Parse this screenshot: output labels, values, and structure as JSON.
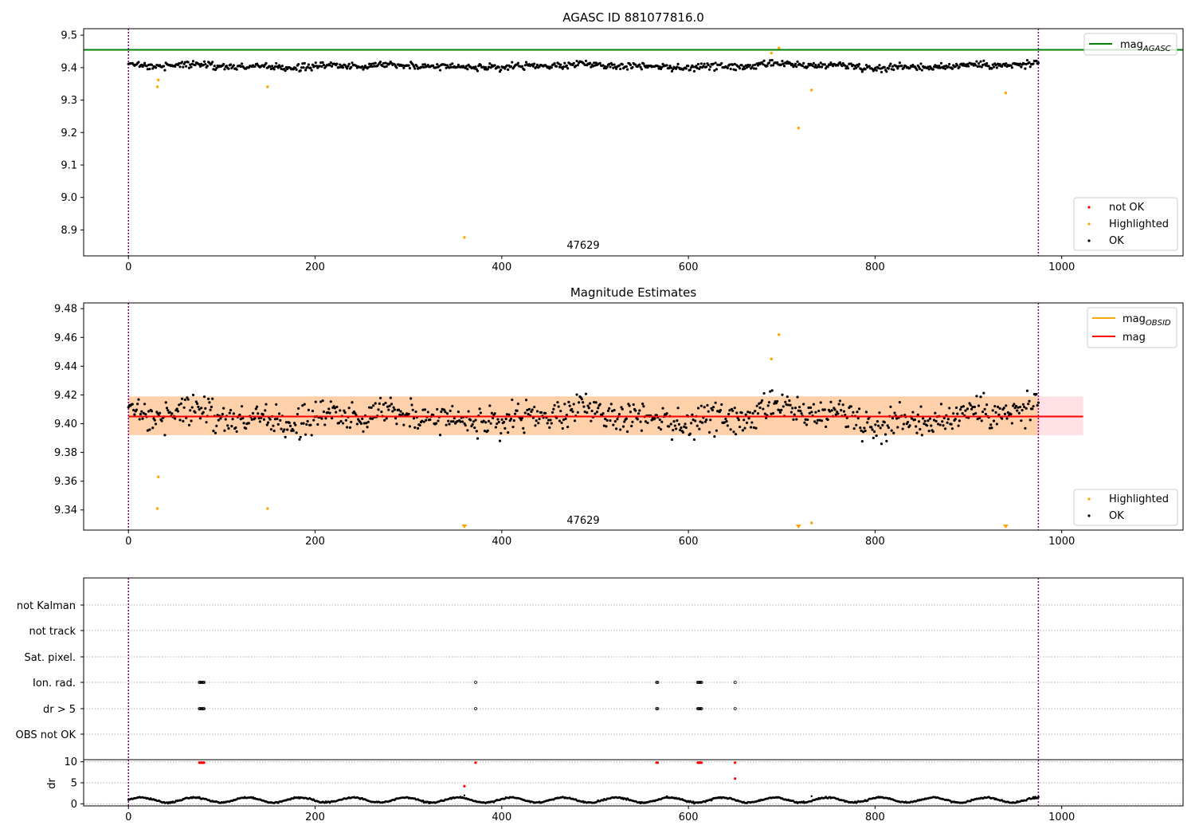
{
  "chart_data": [
    {
      "type": "scatter",
      "title": "AGASC ID 881077816.0",
      "xlim": [
        -48,
        1130
      ],
      "ylim": [
        8.82,
        9.52
      ],
      "xticks": [
        0,
        200,
        400,
        600,
        800,
        1000
      ],
      "yticks": [
        8.9,
        9.0,
        9.1,
        9.2,
        9.3,
        9.4,
        9.5
      ],
      "ytick_labels": [
        "8.9",
        "9.0",
        "9.1",
        "9.2",
        "9.3",
        "9.4",
        "9.5"
      ],
      "obsid_label": "47629",
      "obsid_label_x": 486,
      "obs_boundaries": [
        0,
        975
      ],
      "mag_agasc": 9.455,
      "series": [
        {
          "name": "not OK",
          "color": "#ff0000",
          "points": []
        },
        {
          "name": "Highlighted",
          "color": "#ffa500",
          "points": [
            [
              31,
              9.341
            ],
            [
              32,
              9.362
            ],
            [
              149,
              9.341
            ],
            [
              360,
              8.877
            ],
            [
              689,
              9.445
            ],
            [
              697,
              9.461
            ],
            [
              718,
              9.214
            ],
            [
              732,
              9.331
            ],
            [
              940,
              9.322
            ]
          ]
        },
        {
          "name": "OK",
          "color": "#000000",
          "generator": {
            "x_from": 0,
            "x_to": 975,
            "n": 900,
            "mean": 9.405,
            "std": 0.011
          }
        }
      ],
      "legend_top": {
        "label": "mag",
        "sub": "AGASC",
        "color": "#008000",
        "position": "upper right"
      },
      "legend_bottom": {
        "entries": [
          "not OK",
          "Highlighted",
          "OK"
        ],
        "position": "lower right"
      }
    },
    {
      "type": "scatter",
      "title": "Magnitude Estimates",
      "xlim": [
        -48,
        1130
      ],
      "ylim": [
        9.326,
        9.484
      ],
      "xticks": [
        0,
        200,
        400,
        600,
        800,
        1000
      ],
      "yticks": [
        9.34,
        9.36,
        9.38,
        9.4,
        9.42,
        9.44,
        9.46,
        9.48
      ],
      "ytick_labels": [
        "9.34",
        "9.36",
        "9.38",
        "9.40",
        "9.42",
        "9.44",
        "9.46",
        "9.48"
      ],
      "obsid_label": "47629",
      "obsid_label_x": 486,
      "obs_boundaries": [
        0,
        975
      ],
      "mag_obsid": {
        "mean": 9.405,
        "low": 9.392,
        "high": 9.419,
        "x_end": 975,
        "color": "#ffa500"
      },
      "mag": {
        "mean": 9.405,
        "low": 9.392,
        "high": 9.419,
        "x_end": 1023,
        "color": "#ff0000"
      },
      "series": [
        {
          "name": "Highlighted",
          "color": "#ffa500",
          "points": [
            [
              31,
              9.341
            ],
            [
              32,
              9.363
            ],
            [
              149,
              9.341
            ],
            [
              689,
              9.445
            ],
            [
              697,
              9.462
            ],
            [
              732,
              9.331
            ]
          ],
          "out_of_range_below_x": [
            360,
            718,
            940
          ]
        },
        {
          "name": "OK",
          "color": "#000000",
          "generator": {
            "x_from": 0,
            "x_to": 975,
            "n": 900,
            "mean": 9.405,
            "std": 0.011
          }
        }
      ],
      "legend_top": {
        "entries": [
          {
            "label": "mag",
            "sub": "OBSID",
            "color": "#ffa500"
          },
          {
            "label": "mag",
            "color": "#ff0000"
          }
        ],
        "position": "upper right"
      },
      "legend_bottom": {
        "entries": [
          "Highlighted",
          "OK"
        ],
        "position": "lower right"
      }
    },
    {
      "type": "scatter",
      "title": "",
      "xlim": [
        -48,
        1130
      ],
      "categories": [
        "not Kalman",
        "not track",
        "Sat. pixel.",
        "Ion. rad.",
        "dr > 5",
        "OBS not OK"
      ],
      "flag_points": {
        "Ion. rad.": [
          76,
          77,
          78,
          79,
          80,
          81,
          372,
          566,
          567,
          610,
          611,
          612,
          613,
          614,
          650
        ],
        "dr > 5": [
          76,
          77,
          78,
          79,
          80,
          81,
          372,
          566,
          567,
          610,
          611,
          612,
          613,
          614,
          650
        ]
      },
      "obs_boundaries": [
        0,
        975
      ]
    },
    {
      "type": "scatter",
      "ylabel": "dr",
      "xlim": [
        -48,
        1130
      ],
      "ylim": [
        -0.5,
        10.5
      ],
      "xticks": [
        0,
        200,
        400,
        600,
        800,
        1000
      ],
      "yticks": [
        0,
        5,
        10
      ],
      "ytick_labels": [
        "0",
        "5",
        "10"
      ],
      "obs_boundaries": [
        0,
        975
      ],
      "red_points": [
        [
          76,
          9.8
        ],
        [
          77,
          9.8
        ],
        [
          78,
          9.8
        ],
        [
          79,
          9.8
        ],
        [
          80,
          9.8
        ],
        [
          81,
          9.8
        ],
        [
          372,
          9.8
        ],
        [
          566,
          9.8
        ],
        [
          567,
          9.8
        ],
        [
          610,
          9.8
        ],
        [
          611,
          9.8
        ],
        [
          612,
          9.8
        ],
        [
          613,
          9.8
        ],
        [
          614,
          9.8
        ],
        [
          650,
          9.8
        ],
        [
          650,
          6.0
        ],
        [
          360,
          4.2
        ]
      ],
      "black_generator": {
        "x_from": 0,
        "x_to": 975,
        "n": 900,
        "mean": 0.9,
        "amp": 0.6
      },
      "extra_black": [
        [
          360,
          2.0
        ],
        [
          732,
          1.8
        ]
      ]
    }
  ]
}
